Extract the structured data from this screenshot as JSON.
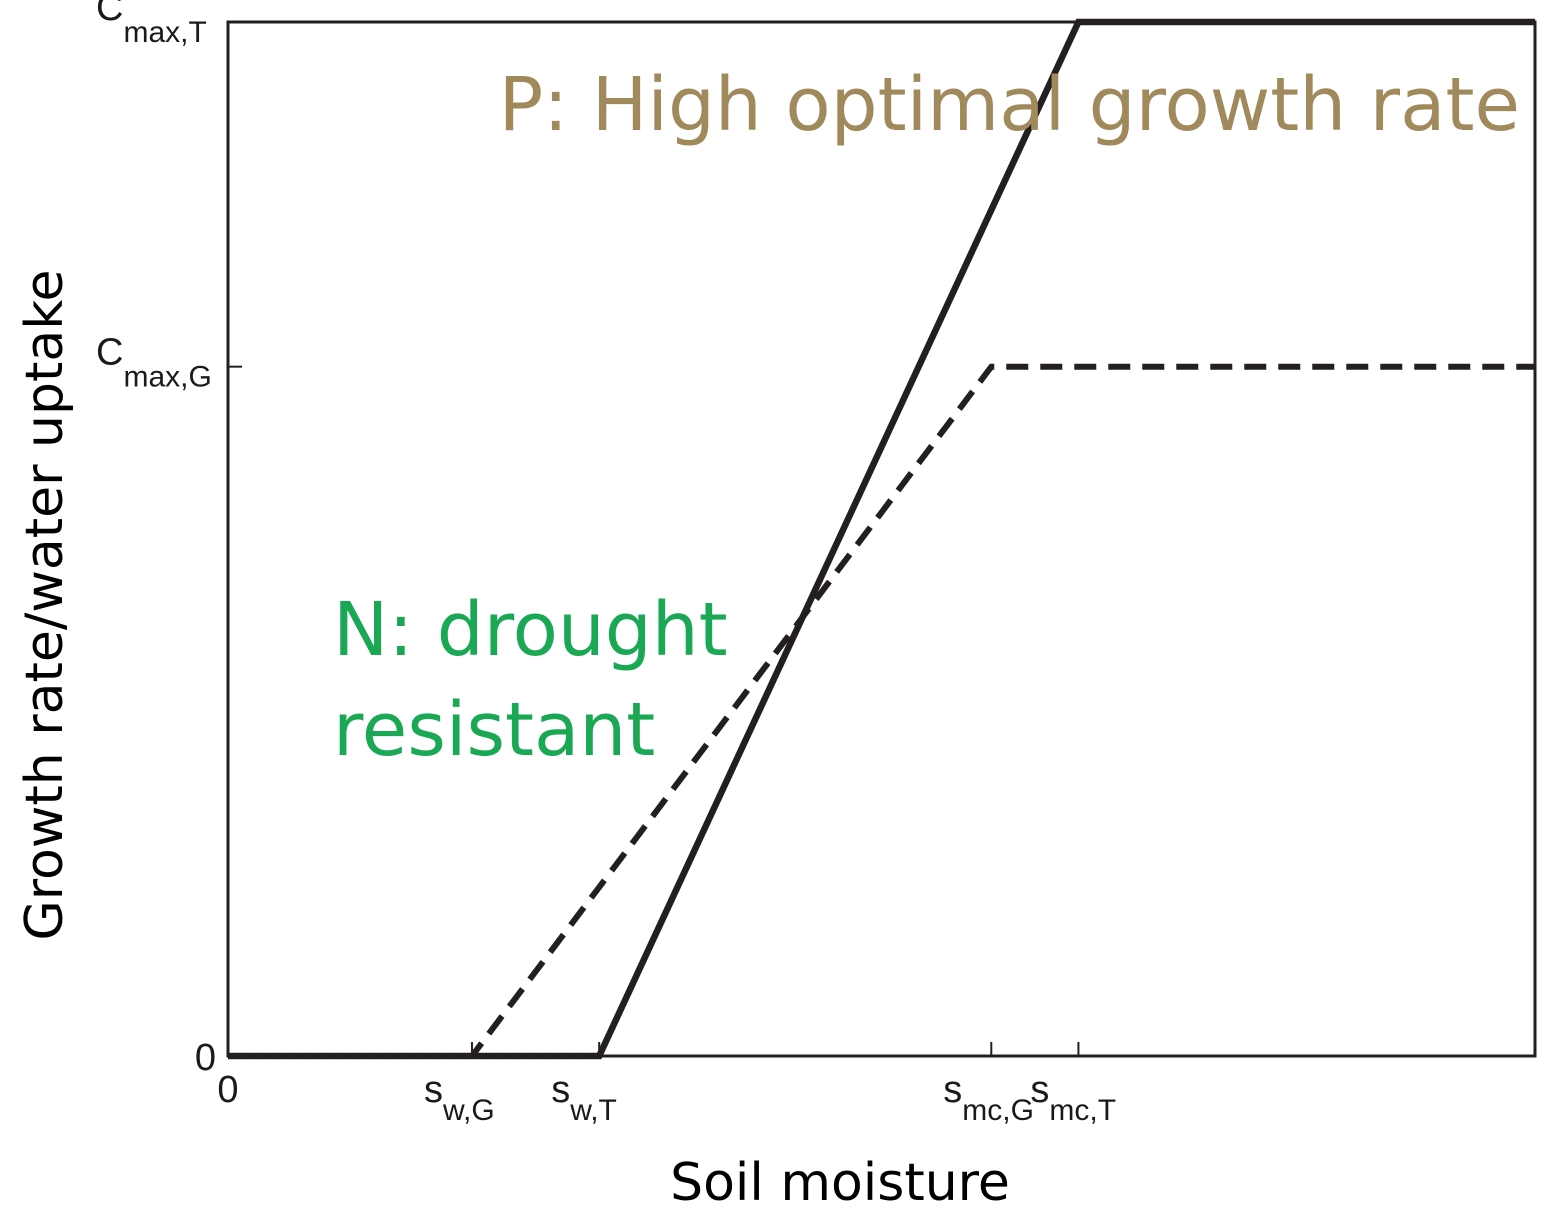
{
  "chart_data": {
    "type": "line",
    "xlabel": "Soil moisture",
    "ylabel": "Growth rate/water uptake",
    "xlim": [
      0,
      7.5
    ],
    "ylim": [
      0,
      3.0
    ],
    "grid": false,
    "x_ticks": [
      {
        "value": 0,
        "base": "0",
        "sub": ""
      },
      {
        "value": 1.4,
        "base": "s",
        "sub": "w,G"
      },
      {
        "value": 2.13,
        "base": "s",
        "sub": "w,T"
      },
      {
        "value": 4.38,
        "base": "s",
        "sub": "mc,G"
      },
      {
        "value": 4.88,
        "base": "s",
        "sub": "mc,T"
      }
    ],
    "y_ticks": [
      {
        "value": 0,
        "base": "0",
        "sub": ""
      },
      {
        "value": 2.0,
        "base": "C",
        "sub": "max,G"
      },
      {
        "value": 3.0,
        "base": "C",
        "sub": "max,T"
      }
    ],
    "series": [
      {
        "style": "solid",
        "color": "#231f20",
        "points": [
          [
            0,
            0
          ],
          [
            2.13,
            0
          ],
          [
            4.88,
            3.0
          ],
          [
            7.5,
            3.0
          ]
        ]
      },
      {
        "style": "dashed",
        "color": "#231f20",
        "points": [
          [
            0,
            0
          ],
          [
            1.4,
            0
          ],
          [
            4.38,
            2.0
          ],
          [
            7.5,
            2.0
          ]
        ]
      }
    ],
    "annotations": [
      {
        "id": "p",
        "text": "P: High optimal growth rate",
        "color": "#a08a5c"
      },
      {
        "id": "n1",
        "text": "N: drought",
        "color": "#1aa855"
      },
      {
        "id": "n2",
        "text": "resistant",
        "color": "#1aa855"
      }
    ]
  }
}
